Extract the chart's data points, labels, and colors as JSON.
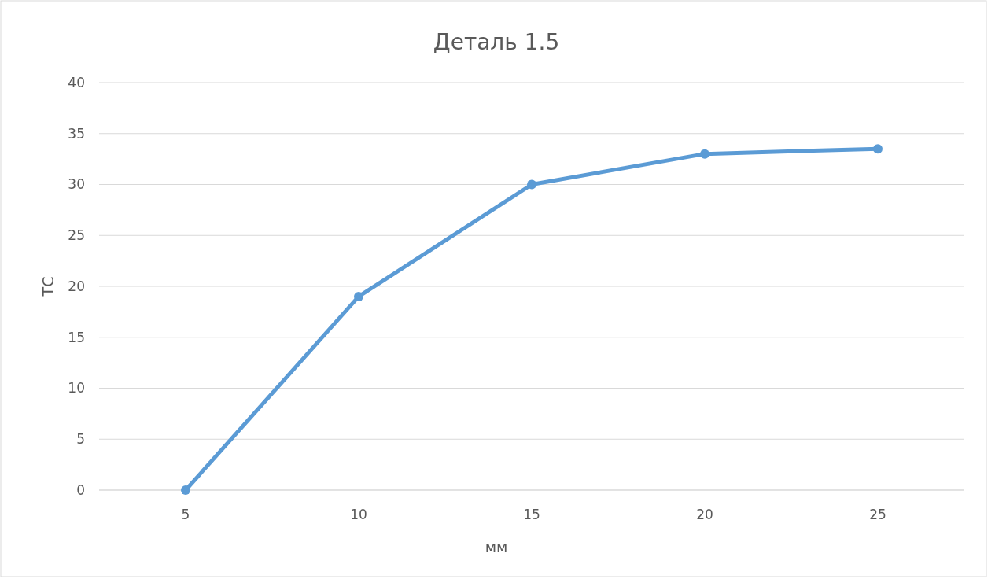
{
  "chart_data": {
    "type": "line",
    "title": "Деталь 1.5",
    "xlabel": "мм",
    "ylabel": "ТС",
    "categories": [
      "5",
      "10",
      "15",
      "20",
      "25"
    ],
    "series": [
      {
        "color": "#5b9bd5",
        "values": [
          0,
          19,
          30,
          33,
          33.5
        ]
      }
    ],
    "ylim": [
      0,
      40
    ],
    "yticks": [
      0,
      5,
      10,
      15,
      20,
      25,
      30,
      35,
      40
    ],
    "grid": "y",
    "marker": "circle",
    "line_style": "solid"
  }
}
